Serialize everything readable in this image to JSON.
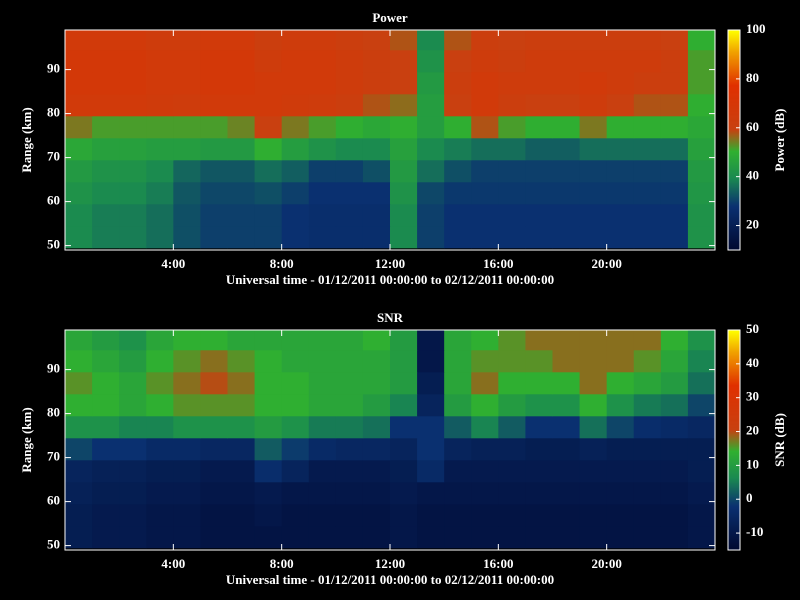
{
  "chart_data": [
    {
      "type": "heatmap",
      "title": "Power",
      "x_label": "Universal time - 01/12/2011 00:00:00 to 02/12/2011 00:00:00",
      "y_label": "Range (km)",
      "colorbar_label": "Power (dB)",
      "x": [
        0.5,
        1.5,
        2.5,
        3.5,
        4.5,
        5.5,
        6.5,
        7.5,
        8.5,
        9.5,
        10.5,
        11.5,
        12.5,
        13.5,
        14.5,
        15.5,
        16.5,
        17.5,
        18.5,
        19.5,
        20.5,
        21.5,
        22.5,
        23.5
      ],
      "y": [
        52,
        57,
        62,
        67,
        72,
        77,
        82,
        87,
        92,
        97
      ],
      "values": [
        [
          40,
          38,
          38,
          36,
          32,
          30,
          30,
          30,
          28,
          27,
          27,
          27,
          40,
          30,
          28,
          28,
          28,
          28,
          28,
          28,
          28,
          28,
          28,
          42
        ],
        [
          40,
          38,
          38,
          36,
          32,
          30,
          30,
          30,
          28,
          27,
          27,
          27,
          40,
          30,
          28,
          28,
          28,
          28,
          28,
          28,
          28,
          28,
          28,
          42
        ],
        [
          42,
          40,
          40,
          38,
          33,
          31,
          31,
          32,
          30,
          28,
          28,
          28,
          42,
          31,
          29,
          29,
          29,
          29,
          29,
          29,
          29,
          29,
          29,
          43
        ],
        [
          44,
          42,
          42,
          40,
          35,
          33,
          33,
          36,
          34,
          30,
          30,
          32,
          44,
          36,
          32,
          30,
          30,
          30,
          30,
          30,
          30,
          30,
          30,
          44
        ],
        [
          48,
          46,
          46,
          45,
          45,
          44,
          44,
          50,
          45,
          42,
          40,
          40,
          46,
          40,
          38,
          36,
          36,
          34,
          34,
          36,
          36,
          36,
          36,
          46
        ],
        [
          55,
          52,
          52,
          52,
          52,
          52,
          54,
          60,
          55,
          52,
          50,
          48,
          50,
          45,
          50,
          58,
          52,
          50,
          50,
          55,
          50,
          50,
          50,
          48
        ],
        [
          66,
          66,
          66,
          65,
          64,
          66,
          66,
          66,
          65,
          64,
          62,
          58,
          56,
          45,
          60,
          66,
          62,
          60,
          60,
          64,
          60,
          58,
          58,
          50
        ],
        [
          68,
          68,
          68,
          66,
          66,
          68,
          68,
          66,
          66,
          66,
          64,
          62,
          60,
          44,
          62,
          66,
          64,
          64,
          64,
          66,
          64,
          62,
          62,
          52
        ],
        [
          68,
          68,
          68,
          66,
          66,
          68,
          68,
          64,
          66,
          66,
          64,
          62,
          60,
          42,
          60,
          64,
          62,
          64,
          64,
          64,
          64,
          64,
          62,
          52
        ],
        [
          66,
          66,
          66,
          64,
          64,
          66,
          66,
          62,
          64,
          64,
          62,
          60,
          58,
          40,
          58,
          62,
          60,
          62,
          62,
          62,
          62,
          62,
          60,
          50
        ]
      ],
      "xlim": [
        0,
        24
      ],
      "xticks": [
        {
          "value": 4,
          "label": "4:00"
        },
        {
          "value": 8,
          "label": "8:00"
        },
        {
          "value": 12,
          "label": "12:00"
        },
        {
          "value": 16,
          "label": "16:00"
        },
        {
          "value": 20,
          "label": "20:00"
        }
      ],
      "ylim": [
        49,
        99
      ],
      "yticks": [
        50,
        60,
        70,
        80,
        90
      ],
      "clim": [
        10,
        100
      ],
      "cticks": [
        20,
        40,
        60,
        80,
        100
      ],
      "colormap": [
        {
          "stop": 0,
          "color": "#000830"
        },
        {
          "stop": 0.2,
          "color": "#0a3070"
        },
        {
          "stop": 0.33,
          "color": "#1a8a50"
        },
        {
          "stop": 0.45,
          "color": "#30b030"
        },
        {
          "stop": 0.55,
          "color": "#c84010"
        },
        {
          "stop": 0.75,
          "color": "#e03000"
        },
        {
          "stop": 0.9,
          "color": "#f0a000"
        },
        {
          "stop": 1,
          "color": "#ffff00"
        }
      ]
    },
    {
      "type": "heatmap",
      "title": "SNR",
      "x_label": "Universal time - 01/12/2011 00:00:00 to 02/12/2011 00:00:00",
      "y_label": "Range (km)",
      "colorbar_label": "SNR (dB)",
      "x": [
        0.5,
        1.5,
        2.5,
        3.5,
        4.5,
        5.5,
        6.5,
        7.5,
        8.5,
        9.5,
        10.5,
        11.5,
        12.5,
        13.5,
        14.5,
        15.5,
        16.5,
        17.5,
        18.5,
        19.5,
        20.5,
        21.5,
        22.5,
        23.5
      ],
      "y": [
        52,
        57,
        62,
        67,
        72,
        77,
        82,
        87,
        92,
        97
      ],
      "values": [
        [
          -8,
          -9,
          -9,
          -10,
          -10,
          -11,
          -11,
          -11,
          -11,
          -11,
          -11,
          -11,
          -10,
          -11,
          -11,
          -11,
          -11,
          -11,
          -11,
          -11,
          -11,
          -11,
          -11,
          -10
        ],
        [
          -8,
          -9,
          -9,
          -10,
          -10,
          -11,
          -11,
          -10,
          -11,
          -11,
          -11,
          -11,
          -10,
          -11,
          -11,
          -11,
          -11,
          -11,
          -11,
          -11,
          -11,
          -11,
          -11,
          -10
        ],
        [
          -7,
          -8,
          -8,
          -9,
          -9,
          -10,
          -10,
          -9,
          -10,
          -10,
          -10,
          -10,
          -9,
          -10,
          -10,
          -10,
          -10,
          -10,
          -10,
          -10,
          -10,
          -10,
          -10,
          -9
        ],
        [
          -6,
          -7,
          -7,
          -8,
          -8,
          -9,
          -9,
          -3,
          -6,
          -9,
          -9,
          -9,
          -8,
          -4,
          -9,
          -9,
          -9,
          -9,
          -9,
          -9,
          -9,
          -9,
          -9,
          -8
        ],
        [
          0,
          -2,
          -2,
          -4,
          -4,
          -5,
          -5,
          2,
          -1,
          -4,
          -5,
          -5,
          -6,
          -2,
          -6,
          -7,
          -7,
          -8,
          -8,
          -7,
          -8,
          -8,
          -8,
          -8
        ],
        [
          8,
          8,
          6,
          6,
          8,
          8,
          8,
          10,
          8,
          5,
          5,
          4,
          -2,
          -2,
          2,
          6,
          2,
          -2,
          -2,
          4,
          0,
          -3,
          -4,
          -5
        ],
        [
          14,
          14,
          12,
          14,
          16,
          16,
          16,
          14,
          14,
          12,
          12,
          10,
          6,
          -6,
          10,
          14,
          10,
          8,
          8,
          14,
          8,
          5,
          4,
          0
        ],
        [
          16,
          14,
          12,
          16,
          18,
          20,
          18,
          14,
          14,
          12,
          12,
          12,
          10,
          -8,
          12,
          18,
          14,
          14,
          14,
          18,
          14,
          12,
          10,
          4
        ],
        [
          14,
          12,
          10,
          14,
          16,
          18,
          16,
          14,
          12,
          12,
          12,
          12,
          10,
          -10,
          12,
          16,
          16,
          16,
          18,
          18,
          18,
          16,
          12,
          6
        ],
        [
          12,
          10,
          8,
          12,
          14,
          14,
          12,
          12,
          12,
          12,
          12,
          14,
          10,
          -10,
          12,
          14,
          16,
          18,
          18,
          18,
          18,
          18,
          14,
          8
        ]
      ],
      "xlim": [
        0,
        24
      ],
      "xticks": [
        {
          "value": 4,
          "label": "4:00"
        },
        {
          "value": 8,
          "label": "8:00"
        },
        {
          "value": 12,
          "label": "12:00"
        },
        {
          "value": 16,
          "label": "16:00"
        },
        {
          "value": 20,
          "label": "20:00"
        }
      ],
      "ylim": [
        49,
        99
      ],
      "yticks": [
        50,
        60,
        70,
        80,
        90
      ],
      "clim": [
        -15,
        50
      ],
      "cticks": [
        -10,
        0,
        10,
        20,
        30,
        40,
        50
      ],
      "colormap": [
        {
          "stop": 0,
          "color": "#000830"
        },
        {
          "stop": 0.2,
          "color": "#0a3070"
        },
        {
          "stop": 0.33,
          "color": "#1a8a50"
        },
        {
          "stop": 0.45,
          "color": "#30b030"
        },
        {
          "stop": 0.55,
          "color": "#c84010"
        },
        {
          "stop": 0.75,
          "color": "#e03000"
        },
        {
          "stop": 0.9,
          "color": "#f0a000"
        },
        {
          "stop": 1,
          "color": "#ffff00"
        }
      ]
    }
  ]
}
